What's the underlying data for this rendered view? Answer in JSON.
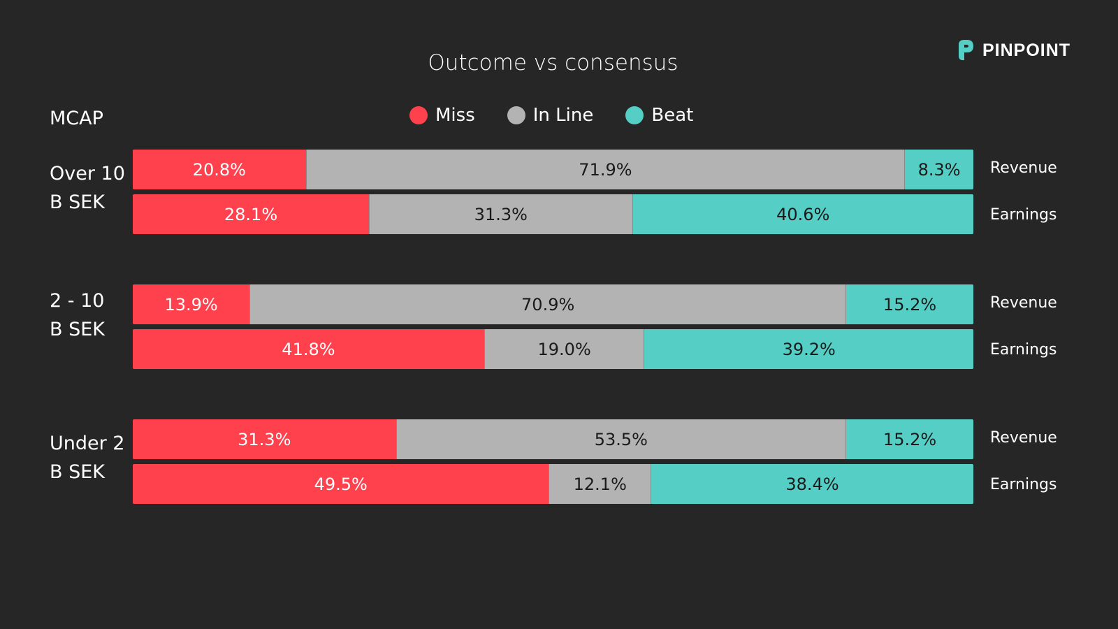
{
  "logo": {
    "text": "PINPOINT"
  },
  "chart_data": {
    "type": "bar",
    "orientation": "horizontal-stacked-100",
    "title": "Outcome vs consensus",
    "group_axis_label": "MCAP",
    "legend": {
      "placement": "top",
      "entries": [
        "Miss",
        "In Line",
        "Beat"
      ]
    },
    "colors": {
      "Miss": "#FF414D",
      "In Line": "#B3B3B3",
      "Beat": "#55CFC5"
    },
    "groups": [
      {
        "label_line1": "Over 10",
        "label_line2": "B SEK",
        "rows": [
          {
            "metric": "Revenue",
            "values": [
              20.8,
              71.9,
              8.3
            ],
            "labels": [
              "20.8%",
              "71.9%",
              "8.3%"
            ]
          },
          {
            "metric": "Earnings",
            "values": [
              28.1,
              31.3,
              40.6
            ],
            "labels": [
              "28.1%",
              "31.3%",
              "40.6%"
            ]
          }
        ]
      },
      {
        "label_line1": "2 - 10",
        "label_line2": "B SEK",
        "rows": [
          {
            "metric": "Revenue",
            "values": [
              13.9,
              70.9,
              15.2
            ],
            "labels": [
              "13.9%",
              "70.9%",
              "15.2%"
            ]
          },
          {
            "metric": "Earnings",
            "values": [
              41.8,
              19.0,
              39.2
            ],
            "labels": [
              "41.8%",
              "19.0%",
              "39.2%"
            ]
          }
        ]
      },
      {
        "label_line1": "Under 2",
        "label_line2": "B SEK",
        "rows": [
          {
            "metric": "Revenue",
            "values": [
              31.3,
              53.5,
              15.2
            ],
            "labels": [
              "31.3%",
              "53.5%",
              "15.2%"
            ]
          },
          {
            "metric": "Earnings",
            "values": [
              49.5,
              12.1,
              38.4
            ],
            "labels": [
              "49.5%",
              "12.1%",
              "38.4%"
            ]
          }
        ]
      }
    ]
  }
}
